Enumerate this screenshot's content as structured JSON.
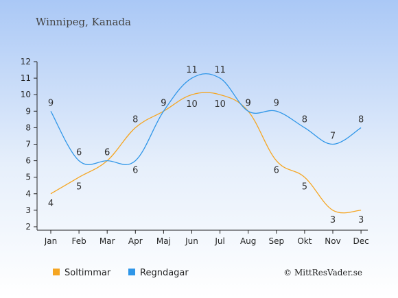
{
  "chart_data": {
    "type": "line",
    "title": "Winnipeg, Kanada",
    "categories": [
      "Jan",
      "Feb",
      "Mar",
      "Apr",
      "Maj",
      "Jun",
      "Jul",
      "Aug",
      "Sep",
      "Okt",
      "Nov",
      "Dec"
    ],
    "series": [
      {
        "name": "Soltimmar",
        "color": "#f5a623",
        "values": [
          4,
          5,
          6,
          8,
          9,
          10,
          10,
          9,
          6,
          5,
          3,
          3
        ]
      },
      {
        "name": "Regndagar",
        "color": "#2f96e8",
        "values": [
          9,
          6,
          6,
          6,
          9,
          11,
          11,
          9,
          9,
          8,
          7,
          8
        ]
      }
    ],
    "ylim": [
      2,
      12
    ],
    "yticks": [
      "2",
      "3",
      "4",
      "5",
      "6",
      "7",
      "8",
      "9",
      "10",
      "11",
      "12"
    ],
    "grid": false,
    "legend_position": "bottom-left"
  },
  "credit": "© MittResVader.se"
}
